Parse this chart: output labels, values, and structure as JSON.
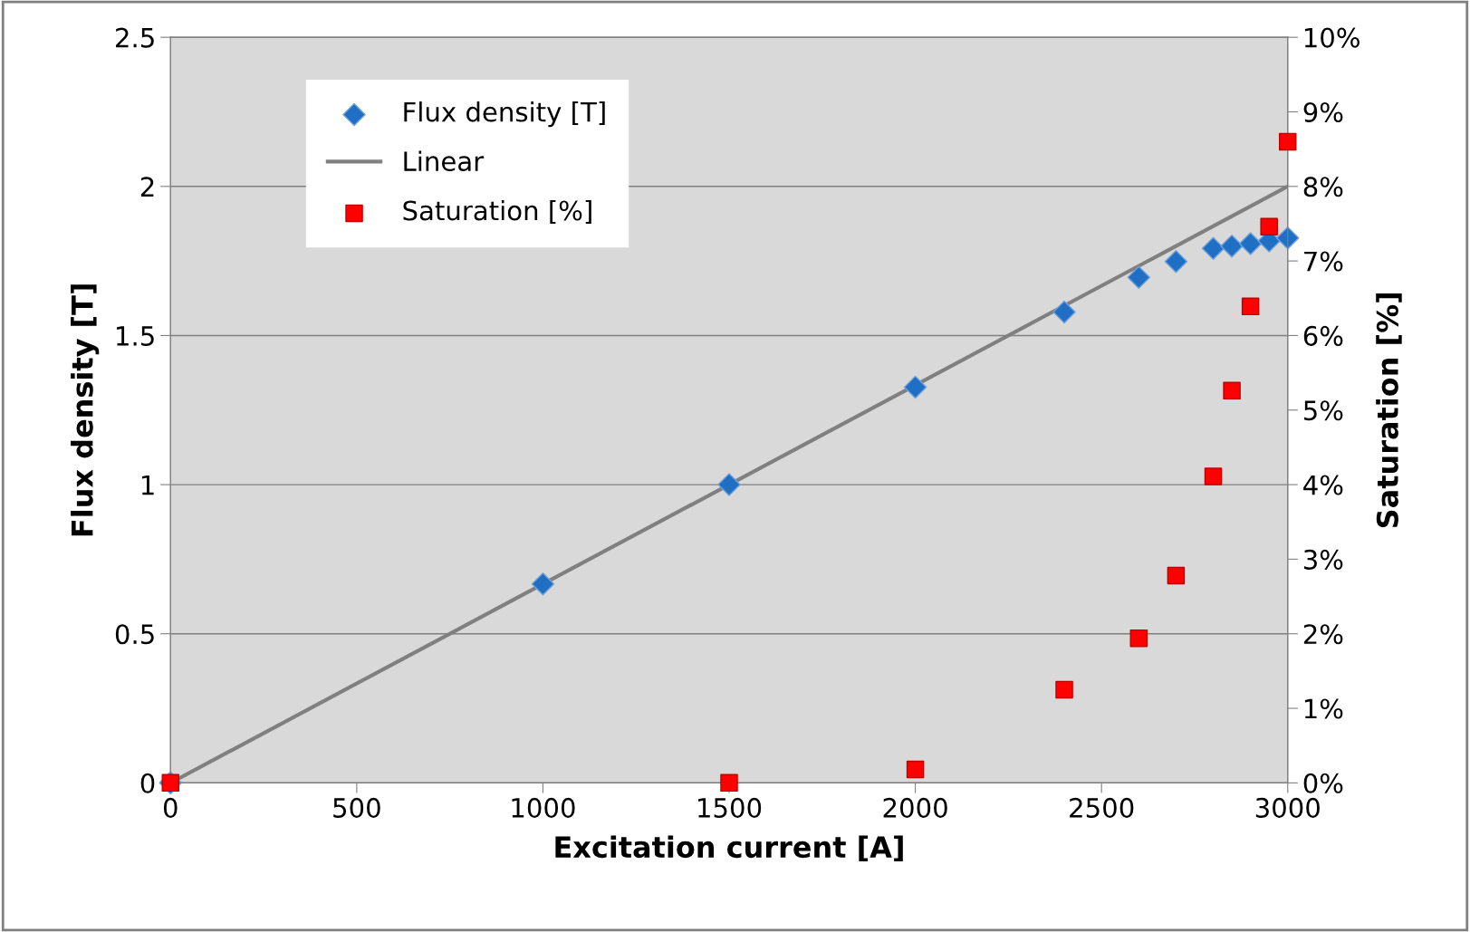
{
  "chart_data": {
    "type": "scatter",
    "xlabel": "Excitation current [A]",
    "ylabel": "Flux density [T]",
    "y2label": "Saturation [%]",
    "xlim": [
      0,
      3000
    ],
    "xticks": [
      0,
      500,
      1000,
      1500,
      2000,
      2500,
      3000
    ],
    "ylim": [
      0,
      2.5
    ],
    "yticks": [
      0,
      0.5,
      1,
      1.5,
      2,
      2.5
    ],
    "y2lim": [
      0,
      10
    ],
    "y2ticks": [
      {
        "value": 0,
        "label": "0%"
      },
      {
        "value": 1,
        "label": "1%"
      },
      {
        "value": 2,
        "label": "2%"
      },
      {
        "value": 3,
        "label": "3%"
      },
      {
        "value": 4,
        "label": "4%"
      },
      {
        "value": 5,
        "label": "5%"
      },
      {
        "value": 6,
        "label": "6%"
      },
      {
        "value": 7,
        "label": "7%"
      },
      {
        "value": 8,
        "label": "8%"
      },
      {
        "value": 9,
        "label": "9%"
      },
      {
        "value": 10,
        "label": "10%"
      }
    ],
    "grid": "y",
    "legend": "top left",
    "series": [
      {
        "name": "Flux density [T]",
        "marker": "diamond",
        "color": "#1f6fc5",
        "x": [
          0,
          1000,
          1500,
          2000,
          2400,
          2600,
          2700,
          2800,
          2850,
          2900,
          2950,
          3000
        ],
        "values": [
          0,
          0.667,
          1.0,
          1.327,
          1.579,
          1.695,
          1.748,
          1.792,
          1.8,
          1.808,
          1.817,
          1.827
        ]
      },
      {
        "name": "Linear",
        "type": "line",
        "marker": "none",
        "color": "#808080",
        "x": [
          0,
          3000
        ],
        "values": [
          0,
          2.0
        ]
      },
      {
        "name": "Saturation [%]",
        "type": "scatter",
        "marker": "square",
        "axis": "y2",
        "color": "#ff0000",
        "x": [
          0,
          1500,
          2000,
          2400,
          2600,
          2700,
          2800,
          2850,
          2900,
          2950,
          3000
        ],
        "values": [
          0,
          0,
          0.18,
          1.25,
          1.94,
          2.78,
          4.11,
          5.26,
          6.39,
          7.46,
          8.6
        ]
      }
    ]
  }
}
